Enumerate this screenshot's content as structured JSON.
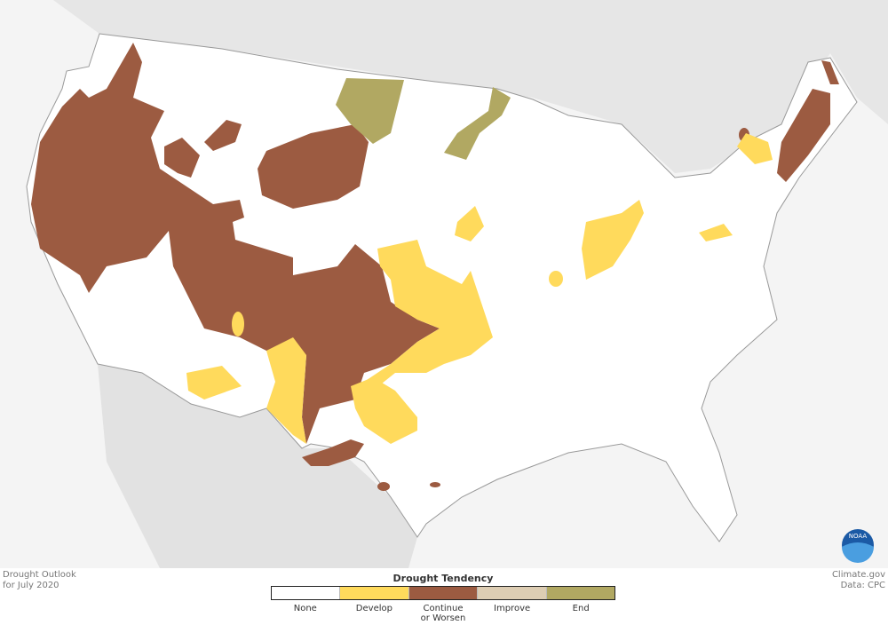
{
  "title": "Drought Outlook",
  "subtitle": "for July 2020",
  "legend": {
    "title": "Drought Tendency",
    "items": [
      {
        "label": "None",
        "color": "#ffffff"
      },
      {
        "label": "Develop",
        "color": "#ffda5c"
      },
      {
        "label": "Continue or Worsen",
        "color": "#9c5b41"
      },
      {
        "label": "Improve",
        "color": "#ddcdb3"
      },
      {
        "label": "End",
        "color": "#b1a862"
      }
    ]
  },
  "credit": {
    "source": "Climate.gov",
    "data": "Data: CPC"
  },
  "logo": "NOAA"
}
